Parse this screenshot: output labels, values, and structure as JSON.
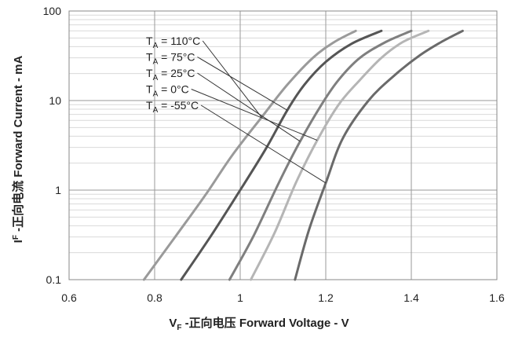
{
  "chart_data": {
    "type": "line",
    "x_scale": "linear",
    "y_scale": "log",
    "xlim": [
      0.6,
      1.6
    ],
    "ylim": [
      0.1,
      100
    ],
    "x_ticks": [
      "0.6",
      "0.8",
      "1",
      "1.2",
      "1.4",
      "1.6"
    ],
    "y_ticks": [
      "0.1",
      "1",
      "10",
      "100"
    ],
    "xlabel": "V",
    "xlabel_sub": "F",
    "xlabel_rest": " -正向电压 Forward Voltage - V",
    "ylabel": "I",
    "ylabel_sup": "F",
    "ylabel_rest": " -正向电流 Forward Current - mA",
    "grid": true,
    "legend_position": "top-left",
    "series": [
      {
        "name": "T_A = 110°C",
        "label_main": "T",
        "label_sub": "A",
        "label_rest": " = 110°C",
        "color": "#9a9a9a",
        "x": [
          0.775,
          0.85,
          0.92,
          0.98,
          1.05,
          1.11,
          1.17,
          1.22,
          1.27
        ],
        "y": [
          0.1,
          0.31,
          0.9,
          2.4,
          6.5,
          15,
          30,
          45,
          60
        ]
      },
      {
        "name": "T_A = 75°C",
        "label_main": "T",
        "label_sub": "A",
        "label_rest": " = 75°C",
        "color": "#555555",
        "x": [
          0.862,
          0.93,
          1.0,
          1.06,
          1.11,
          1.15,
          1.2,
          1.26,
          1.33
        ],
        "y": [
          0.1,
          0.3,
          1.0,
          2.9,
          7.8,
          15,
          27,
          43,
          60
        ]
      },
      {
        "name": "T_A = 25°C",
        "label_main": "T",
        "label_sub": "A",
        "label_rest": " = 25°C",
        "color": "#7f7f7f",
        "x": [
          0.975,
          1.03,
          1.09,
          1.14,
          1.19,
          1.23,
          1.28,
          1.34,
          1.4
        ],
        "y": [
          0.1,
          0.3,
          1.2,
          3.5,
          9,
          17,
          30,
          45,
          60
        ]
      },
      {
        "name": "T_A = 0°C",
        "label_main": "T",
        "label_sub": "A",
        "label_rest": " = 0°C",
        "color": "#b5b5b5",
        "x": [
          1.025,
          1.08,
          1.13,
          1.18,
          1.23,
          1.28,
          1.33,
          1.38,
          1.44
        ],
        "y": [
          0.1,
          0.33,
          1.2,
          3.6,
          9,
          17,
          30,
          45,
          60
        ]
      },
      {
        "name": "T_A = -55°C",
        "label_main": "T",
        "label_sub": "A",
        "label_rest": " = -55°C",
        "color": "#6a6a6a",
        "x": [
          1.128,
          1.16,
          1.2,
          1.24,
          1.3,
          1.36,
          1.42,
          1.47,
          1.52
        ],
        "y": [
          0.1,
          0.35,
          1.2,
          3.8,
          10,
          19,
          32,
          45,
          60
        ]
      }
    ]
  }
}
